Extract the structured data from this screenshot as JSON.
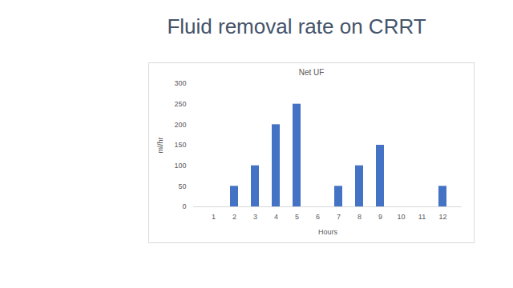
{
  "chart_data": {
    "type": "bar",
    "title": "Fluid removal rate on CRRT",
    "subtitle": "Net UF",
    "x_label": "Hours",
    "y_label": "ml/hr",
    "categories": [
      "1",
      "2",
      "3",
      "4",
      "5",
      "6",
      "7",
      "8",
      "9",
      "10",
      "11",
      "12"
    ],
    "values": [
      0,
      50,
      100,
      200,
      250,
      0,
      50,
      100,
      150,
      0,
      0,
      50
    ],
    "color": "#4472c4",
    "ylim": [
      0,
      300
    ],
    "yticks": [
      0,
      50,
      100,
      150,
      200,
      250,
      300
    ],
    "grid": false
  }
}
